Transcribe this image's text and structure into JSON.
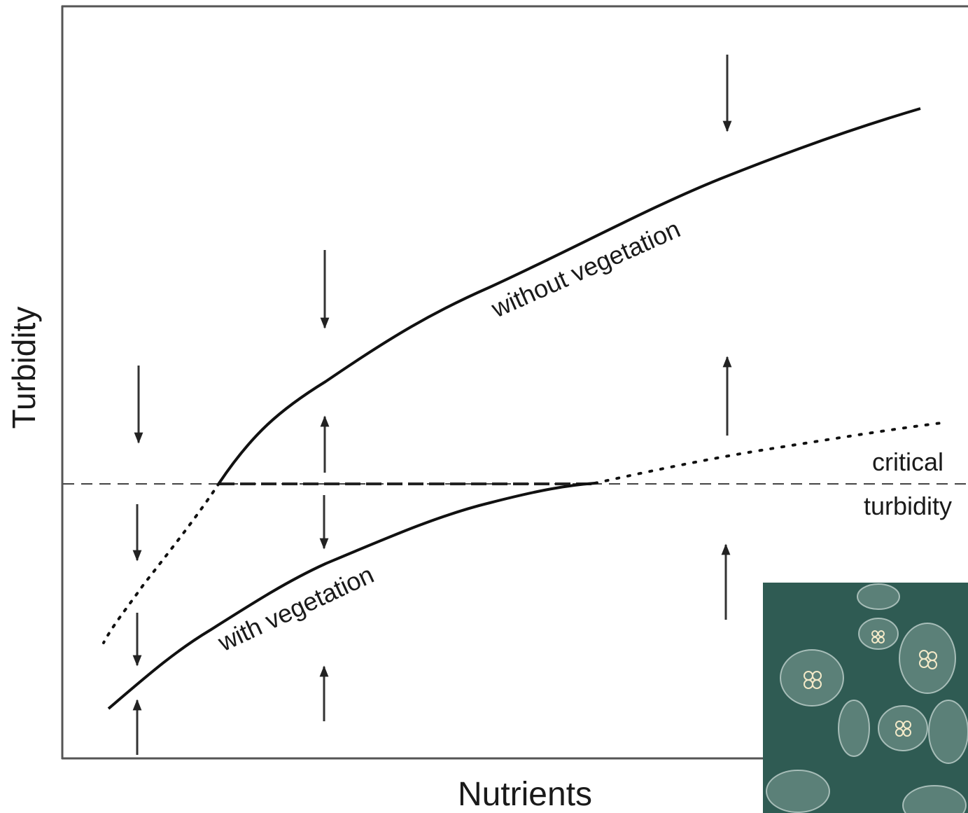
{
  "axes": {
    "y_label": "Turbidity",
    "x_label": "Nutrients"
  },
  "curves": [
    {
      "label": "without vegetation"
    },
    {
      "label": "with vegetation"
    }
  ],
  "threshold": {
    "label_lines": [
      "critical",
      "turbidity"
    ]
  }
}
